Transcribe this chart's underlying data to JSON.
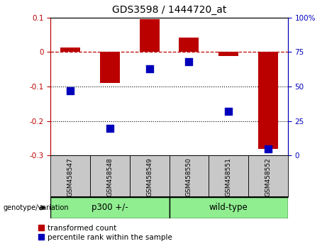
{
  "title": "GDS3598 / 1444720_at",
  "samples": [
    "GSM458547",
    "GSM458548",
    "GSM458549",
    "GSM458550",
    "GSM458551",
    "GSM458552"
  ],
  "red_values": [
    0.013,
    -0.09,
    0.095,
    0.042,
    -0.012,
    -0.28
  ],
  "blue_values_pct": [
    47,
    20,
    63,
    68,
    32,
    5
  ],
  "ylim_left": [
    -0.3,
    0.1
  ],
  "ylim_right": [
    0,
    100
  ],
  "yticks_left": [
    -0.3,
    -0.2,
    -0.1,
    0.0,
    0.1
  ],
  "yticks_right": [
    0,
    25,
    50,
    75,
    100
  ],
  "red_color": "#BB0000",
  "blue_color": "#0000BB",
  "bar_width": 0.5,
  "dot_size": 45,
  "hline_y": 0.0,
  "dotted_lines": [
    -0.1,
    -0.2
  ],
  "legend_red": "transformed count",
  "legend_blue": "percentile rank within the sample",
  "genotype_label": "genotype/variation",
  "p300_label": "p300 +/-",
  "wildtype_label": "wild-type",
  "group_color": "#90EE90",
  "label_bg_color": "#C8C8C8",
  "p300_count": 3,
  "wildtype_count": 3
}
